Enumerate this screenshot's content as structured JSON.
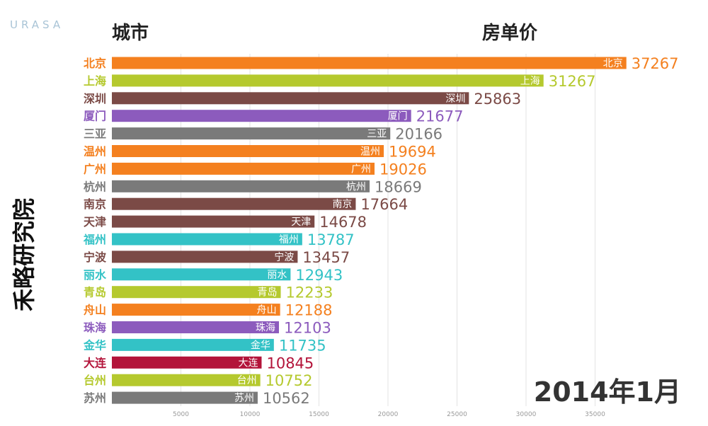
{
  "watermark": "URASA",
  "vertical_label": "禾略研究院",
  "header": {
    "city": "城市",
    "price": "房单价"
  },
  "period": "2014年1月",
  "colors": {
    "orange": "#f4801f",
    "olive": "#b5c92e",
    "maroon": "#7b4a46",
    "purple": "#8c5bbd",
    "gray": "#7a7a7a",
    "teal": "#33c2c6",
    "crimson": "#b3143a",
    "grid": "#e3e3e3"
  },
  "chart_data": {
    "type": "bar",
    "orientation": "horizontal",
    "categories": [
      "北京",
      "上海",
      "深圳",
      "厦门",
      "三亚",
      "温州",
      "广州",
      "杭州",
      "南京",
      "天津",
      "福州",
      "宁波",
      "丽水",
      "青岛",
      "舟山",
      "珠海",
      "金华",
      "大连",
      "台州",
      "苏州"
    ],
    "values": [
      37267,
      31267,
      25863,
      21677,
      20166,
      19694,
      19026,
      18669,
      17664,
      14678,
      13787,
      13457,
      12943,
      12233,
      12188,
      12103,
      11735,
      10845,
      10752,
      10562
    ],
    "bar_colors": [
      "orange",
      "olive",
      "maroon",
      "purple",
      "gray",
      "orange",
      "orange",
      "gray",
      "maroon",
      "maroon",
      "teal",
      "maroon",
      "teal",
      "olive",
      "orange",
      "purple",
      "teal",
      "crimson",
      "olive",
      "gray"
    ],
    "xticks": [
      5000,
      10000,
      15000,
      20000,
      25000,
      30000,
      35000
    ],
    "xlim": [
      0,
      40000
    ],
    "grid": true
  }
}
